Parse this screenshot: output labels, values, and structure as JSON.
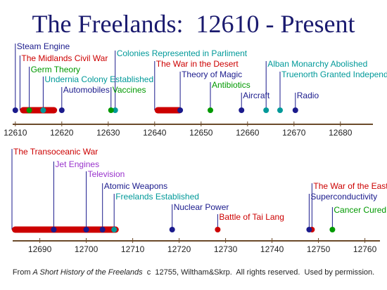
{
  "title": "The Freelands:  12610 - Present",
  "timelines": [
    {
      "xlim": [
        12607,
        12687
      ],
      "xticks": [
        12610,
        12620,
        12630,
        12640,
        12650,
        12660,
        12670,
        12680
      ],
      "ranges": [
        {
          "label": "The Midlands Civil War",
          "start": 12611,
          "end": 12619,
          "color": "#cc0000"
        },
        {
          "label": "The War in the Desert",
          "start": 12640,
          "end": 12646,
          "color": "#cc0000"
        }
      ],
      "events": [
        {
          "label": "Steam Engine",
          "year": 12610,
          "color": "#1a1a8c"
        },
        {
          "label": "Germ Theory",
          "year": 12613,
          "color": "#009900"
        },
        {
          "label": "Undernia Colony Established",
          "year": 12616,
          "color": "#009999"
        },
        {
          "label": "Automobiles",
          "year": 12620,
          "color": "#1a1a8c"
        },
        {
          "label": "Colonies Represented in Parliment",
          "year": 12631.5,
          "color": "#009999"
        },
        {
          "label": "Vaccines",
          "year": 12630.6,
          "color": "#009900"
        },
        {
          "label": "Theory of Magic",
          "year": 12645.5,
          "color": "#1a1a8c"
        },
        {
          "label": "Antibiotics",
          "year": 12652,
          "color": "#009900"
        },
        {
          "label": "Alban Monarchy Abolished",
          "year": 12664,
          "color": "#009999"
        },
        {
          "label": "Truenorth Granted Independance",
          "year": 12667,
          "color": "#009999"
        },
        {
          "label": "Aircraft",
          "year": 12658.7,
          "color": "#1a1a8c"
        },
        {
          "label": "Radio",
          "year": 12670.3,
          "color": "#1a1a8c"
        }
      ]
    },
    {
      "xlim": [
        12684,
        12764
      ],
      "xticks": [
        12690,
        12700,
        12710,
        12720,
        12730,
        12740,
        12750,
        12760
      ],
      "ranges": [
        {
          "label": "The Transoceanic War",
          "start": 12684,
          "end": 12707,
          "color": "#cc0000"
        }
      ],
      "events": [
        {
          "label": "Jet Engines",
          "year": 12693,
          "color": "#9933cc"
        },
        {
          "label": "Television",
          "year": 12700,
          "color": "#9933cc"
        },
        {
          "label": "Atomic Weapons",
          "year": 12703.5,
          "color": "#1a1a8c"
        },
        {
          "label": "Freelands Established",
          "year": 12706,
          "color": "#009999"
        },
        {
          "label": "Nuclear Power",
          "year": 12718.5,
          "color": "#1a1a8c"
        },
        {
          "label": "Battle of Tai Lang",
          "year": 12728.3,
          "color": "#cc0000"
        },
        {
          "label": "The War of the Eastern Sea",
          "year": 12748.6,
          "color": "#cc0000"
        },
        {
          "label": "Superconductivity",
          "year": 12748,
          "color": "#1a1a8c"
        },
        {
          "label": "Cancer Cured",
          "year": 12753,
          "color": "#009900"
        }
      ]
    }
  ],
  "footer": {
    "prefix": "From",
    "book": "A Short History of the Freelands",
    "rest": "c  12755, Wiltham&Skrp.  All rights reserved.  Used by permission."
  }
}
